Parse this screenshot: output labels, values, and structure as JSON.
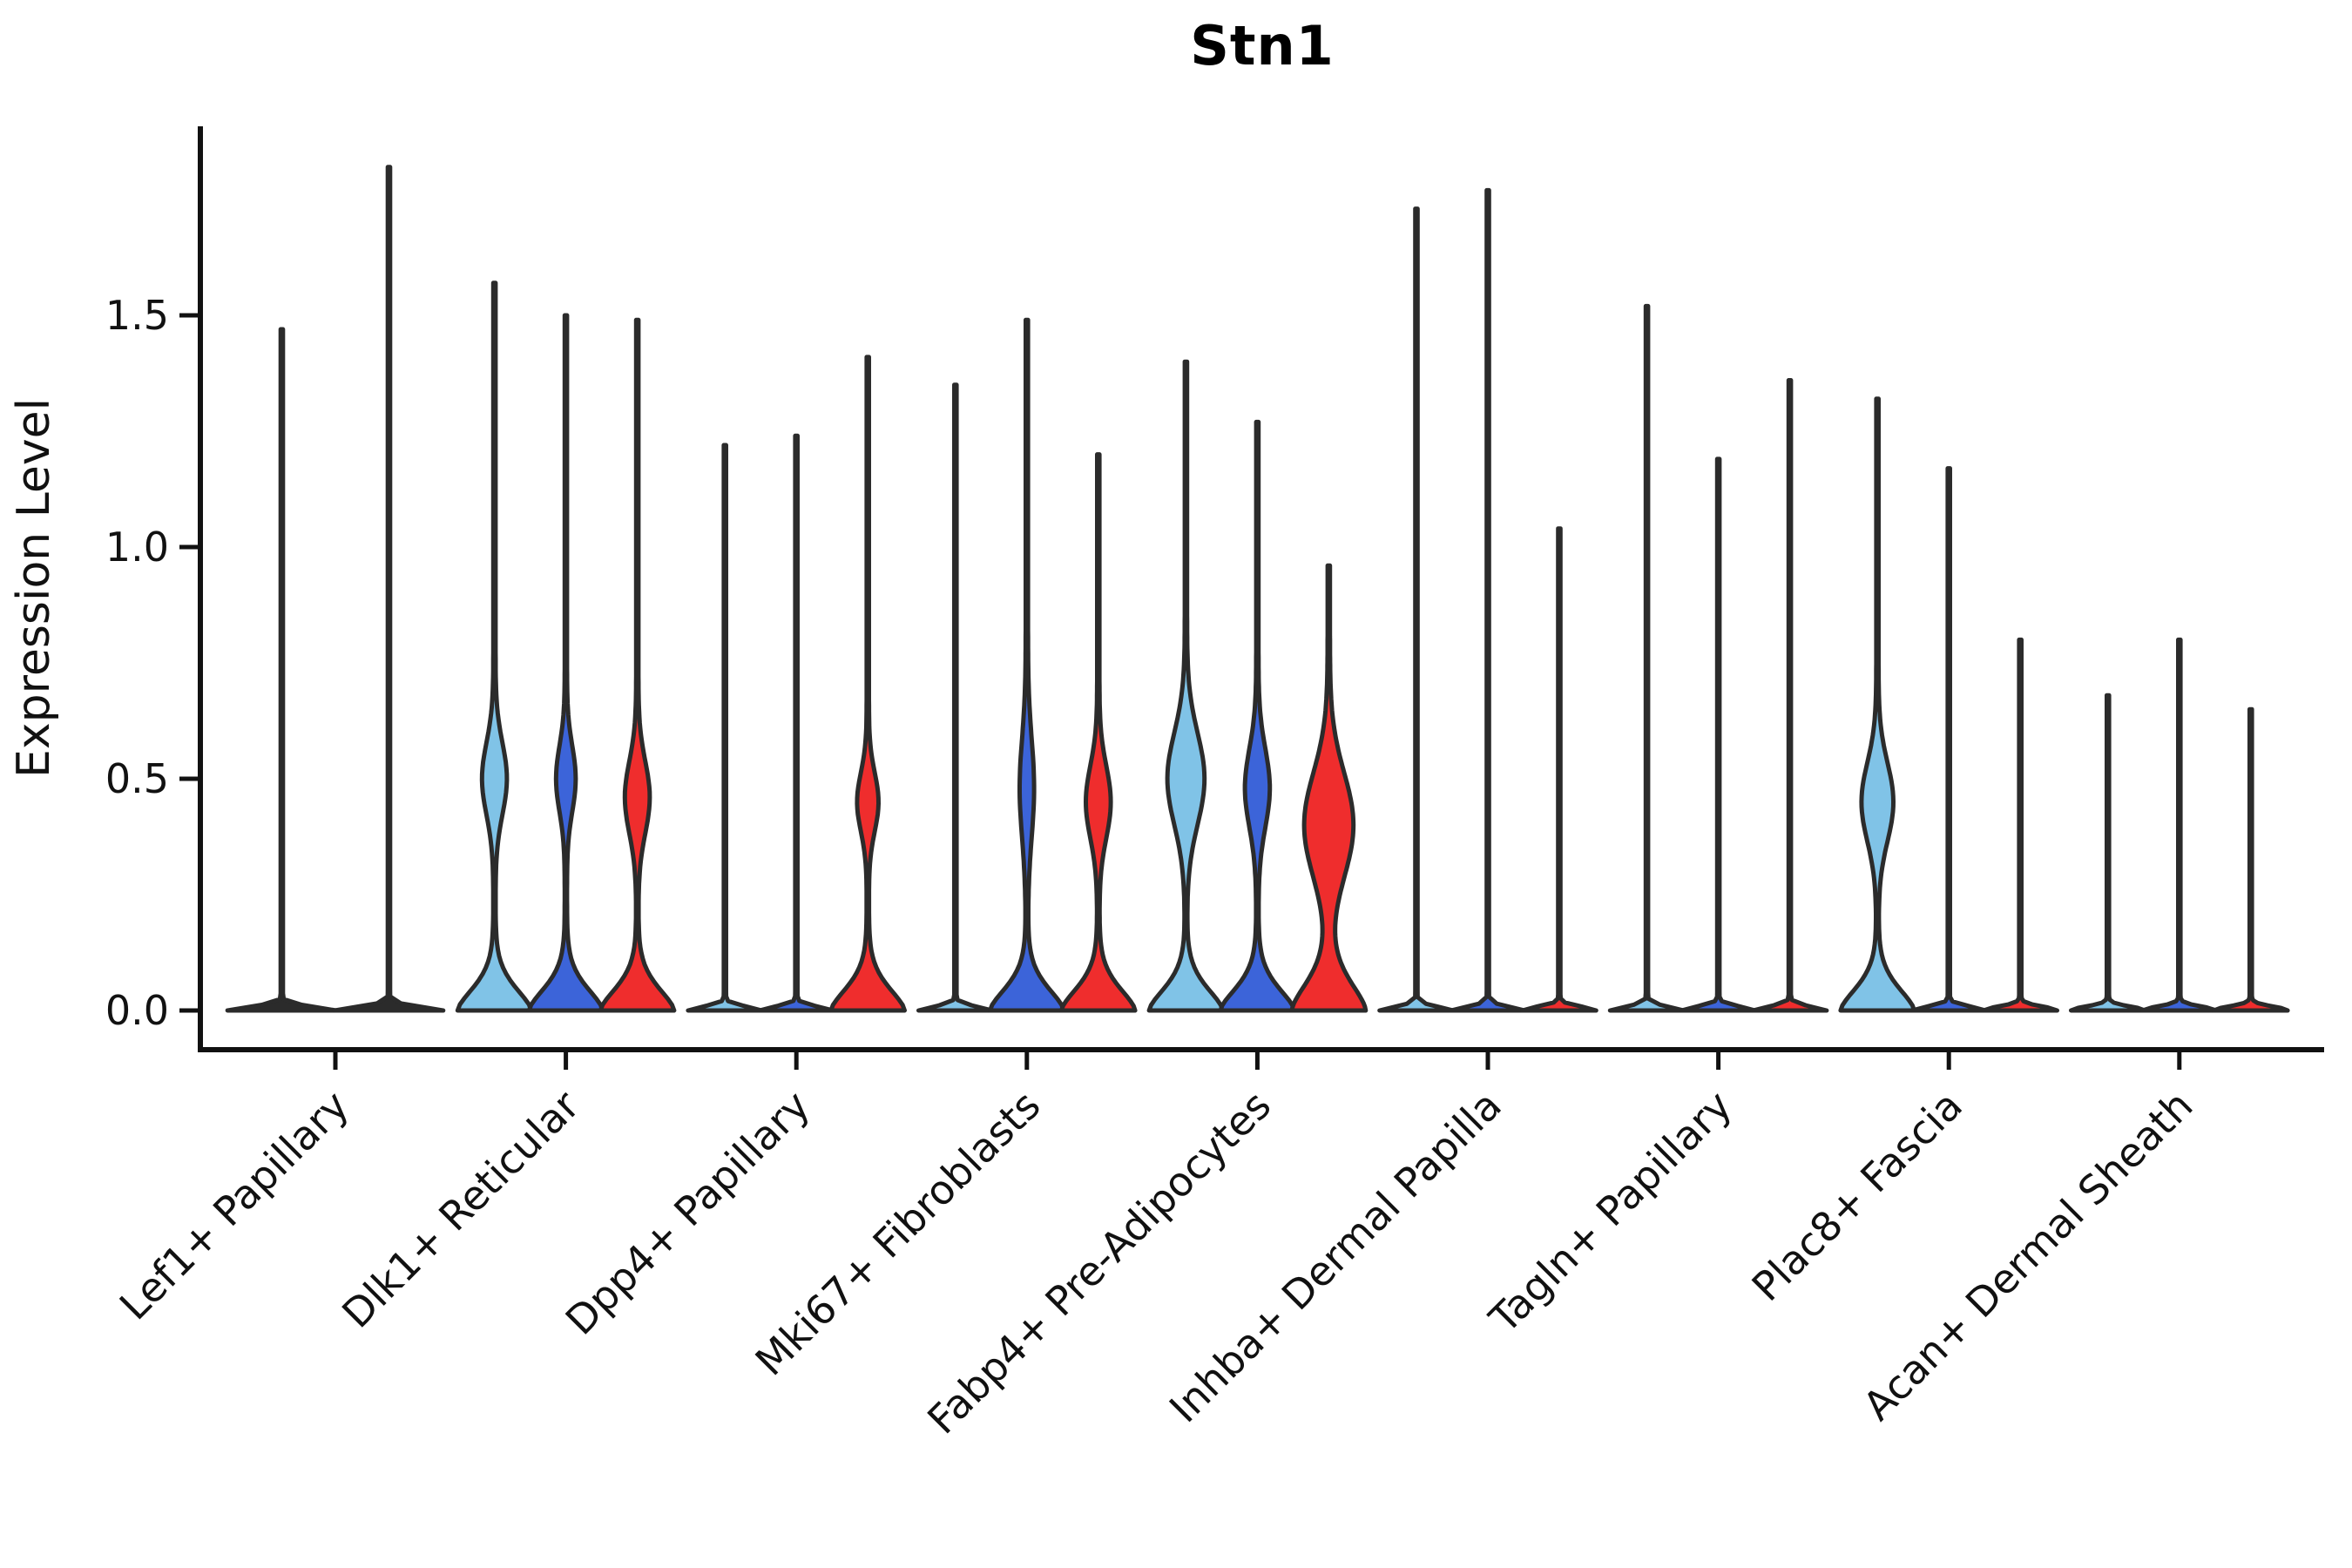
{
  "chart_data": {
    "type": "violin",
    "title": "Stn1",
    "ylabel": "Expression Level",
    "xlabel": "",
    "grid": false,
    "legend": "none",
    "ylim": [
      -0.085,
      1.9
    ],
    "y_ticks": [
      {
        "value": 0.0,
        "label": "0.0"
      },
      {
        "value": 0.5,
        "label": "0.5"
      },
      {
        "value": 1.0,
        "label": "1.0"
      },
      {
        "value": 1.5,
        "label": "1.5"
      }
    ],
    "condition_colors": {
      "light_blue": "#80C3E7",
      "dark_blue": "#3C64D9",
      "red": "#EF2D2D"
    },
    "outline_color": "#2b2b2b",
    "axis_color": "#111111",
    "groups": [
      {
        "label": "Lef1+ Papillary",
        "violins": [
          {
            "color": null,
            "max": 1.47,
            "bulge": null
          },
          {
            "color": null,
            "max": 1.82,
            "bulge": null
          }
        ]
      },
      {
        "label": "Dlk1+ Reticular",
        "violins": [
          {
            "color": "light_blue",
            "max": 1.57,
            "bulge": {
              "center": 0.5,
              "width": 13,
              "sigma": 0.11
            }
          },
          {
            "color": "dark_blue",
            "max": 1.5,
            "bulge": {
              "center": 0.5,
              "width": 10,
              "sigma": 0.1
            }
          },
          {
            "color": "red",
            "max": 1.49,
            "bulge": {
              "center": 0.46,
              "width": 13,
              "sigma": 0.11
            }
          }
        ]
      },
      {
        "label": "Dpp4+ Papillary",
        "violins": [
          {
            "color": "light_blue",
            "max": 1.22,
            "bulge": null
          },
          {
            "color": "dark_blue",
            "max": 1.24,
            "bulge": null
          },
          {
            "color": "red",
            "max": 1.41,
            "bulge": {
              "center": 0.45,
              "width": 11,
              "sigma": 0.09
            }
          }
        ]
      },
      {
        "label": "Mki67+ Fibroblasts",
        "violins": [
          {
            "color": "light_blue",
            "max": 1.35,
            "bulge": null
          },
          {
            "color": "dark_blue",
            "max": 1.49,
            "bulge": {
              "center": 0.48,
              "width": 7,
              "sigma": 0.15
            }
          },
          {
            "color": "red",
            "max": 1.2,
            "bulge": {
              "center": 0.45,
              "width": 13,
              "sigma": 0.11
            }
          }
        ]
      },
      {
        "label": "Fabp4+ Pre-Adipocytes",
        "violins": [
          {
            "color": "light_blue",
            "max": 1.4,
            "bulge": {
              "center": 0.5,
              "width": 20,
              "sigma": 0.14
            }
          },
          {
            "color": "dark_blue",
            "max": 1.27,
            "bulge": {
              "center": 0.48,
              "width": 13,
              "sigma": 0.12
            }
          },
          {
            "color": "red",
            "max": 0.96,
            "bulge": {
              "center": 0.4,
              "width": 27,
              "sigma": 0.16
            },
            "base_sigma": 0.09
          }
        ]
      },
      {
        "label": "Inhba+ Dermal Papilla",
        "violins": [
          {
            "color": "light_blue",
            "max": 1.73,
            "bulge": null
          },
          {
            "color": "dark_blue",
            "max": 1.77,
            "bulge": null
          },
          {
            "color": "red",
            "max": 1.04,
            "bulge": null
          }
        ]
      },
      {
        "label": "Tagln+ Papillary",
        "violins": [
          {
            "color": "light_blue",
            "max": 1.52,
            "bulge": null
          },
          {
            "color": "dark_blue",
            "max": 1.19,
            "bulge": null
          },
          {
            "color": "red",
            "max": 1.36,
            "bulge": null
          }
        ]
      },
      {
        "label": "Plac8+ Fascia",
        "violins": [
          {
            "color": "light_blue",
            "max": 1.32,
            "bulge": {
              "center": 0.45,
              "width": 17,
              "sigma": 0.12
            }
          },
          {
            "color": "dark_blue",
            "max": 1.17,
            "bulge": null
          },
          {
            "color": "red",
            "max": 0.8,
            "bulge": null
          }
        ]
      },
      {
        "label": "Acan+ Dermal Sheath",
        "violins": [
          {
            "color": "light_blue",
            "max": 0.68,
            "bulge": null
          },
          {
            "color": "dark_blue",
            "max": 0.8,
            "bulge": null
          },
          {
            "color": "red",
            "max": 0.65,
            "bulge": null
          }
        ]
      }
    ]
  }
}
